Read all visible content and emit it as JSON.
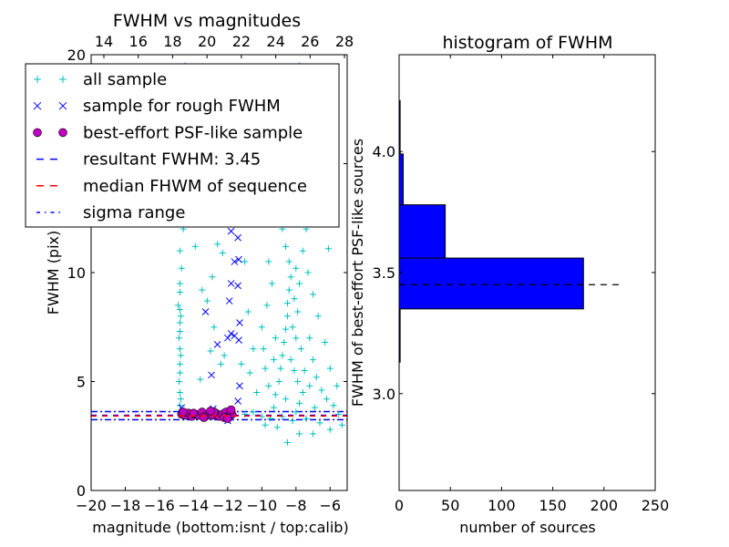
{
  "chart_data": [
    {
      "type": "scatter",
      "title": "FWHM vs magnitudes",
      "xlabel": "magnitude (bottom:isnt / top:calib)",
      "ylabel": "FWHM (pix)",
      "xlim": [
        -20,
        -5
      ],
      "ylim": [
        0,
        20
      ],
      "xticks": [
        -20,
        -18,
        -16,
        -14,
        -12,
        -10,
        -8,
        -6
      ],
      "xtick_labels": [
        "−20",
        "−18",
        "−16",
        "−14",
        "−12",
        "−10",
        "−8",
        "−6"
      ],
      "yticks": [
        0,
        5,
        10,
        15,
        20
      ],
      "ytick_labels": [
        "0",
        "5",
        "10",
        "15",
        "20"
      ],
      "top_xticks": [
        14,
        16,
        18,
        20,
        22,
        24,
        26,
        28
      ],
      "top_xtick_labels": [
        "14",
        "16",
        "18",
        "20",
        "22",
        "24",
        "26",
        "28"
      ],
      "legend_position": "upper-left",
      "series": [
        {
          "name": "all sample",
          "marker": "+",
          "color": "#00bfbf",
          "points": [
            [
              -14.8,
              3.6
            ],
            [
              -14.8,
              3.9
            ],
            [
              -14.75,
              4.2
            ],
            [
              -14.8,
              4.5
            ],
            [
              -14.85,
              5.0
            ],
            [
              -14.8,
              5.4
            ],
            [
              -14.8,
              5.8
            ],
            [
              -14.75,
              6.2
            ],
            [
              -14.8,
              6.5
            ],
            [
              -14.85,
              7.0
            ],
            [
              -14.8,
              7.3
            ],
            [
              -14.8,
              7.7
            ],
            [
              -14.75,
              8.0
            ],
            [
              -14.8,
              8.3
            ],
            [
              -14.9,
              8.5
            ],
            [
              -14.8,
              9.1
            ],
            [
              -14.8,
              9.5
            ],
            [
              -14.7,
              10.2
            ],
            [
              -14.8,
              11.0
            ],
            [
              -14.6,
              12.0
            ],
            [
              -14.7,
              13.5
            ],
            [
              -14.5,
              15.0
            ],
            [
              -14.6,
              17.0
            ],
            [
              -14.4,
              18.5
            ],
            [
              -14.5,
              19.5
            ],
            [
              -13.5,
              9.2
            ],
            [
              -13.2,
              8.7
            ],
            [
              -12.8,
              7.5
            ],
            [
              -13.0,
              6.4
            ],
            [
              -12.2,
              6.2
            ],
            [
              -12.4,
              5.8
            ],
            [
              -13.6,
              5.1
            ],
            [
              -12.9,
              9.8
            ],
            [
              -12.3,
              10.9
            ],
            [
              -13.9,
              11.2
            ],
            [
              -12.0,
              12.5
            ],
            [
              -11.0,
              10.5
            ],
            [
              -10.8,
              8.2
            ],
            [
              -10.5,
              6.5
            ],
            [
              -10.7,
              5.4
            ],
            [
              -11.2,
              5.8
            ],
            [
              -10.3,
              4.5
            ],
            [
              -12.5,
              14.0
            ],
            [
              -13.0,
              16.5
            ],
            [
              -11.5,
              18.0
            ],
            [
              -10.5,
              15.0
            ],
            [
              -13.8,
              12.8
            ],
            [
              -12.6,
              11.3
            ],
            [
              -11.8,
              3.7
            ],
            [
              -11.0,
              3.5
            ],
            [
              -10.5,
              3.6
            ],
            [
              -10.0,
              3.4
            ],
            [
              -9.8,
              3.0
            ],
            [
              -9.5,
              3.3
            ],
            [
              -9.3,
              3.8
            ],
            [
              -9.2,
              4.4
            ],
            [
              -9.0,
              5.0
            ],
            [
              -8.9,
              5.6
            ],
            [
              -8.8,
              6.2
            ],
            [
              -8.7,
              6.8
            ],
            [
              -8.6,
              7.4
            ],
            [
              -8.5,
              8.0
            ],
            [
              -8.5,
              8.6
            ],
            [
              -8.4,
              9.2
            ],
            [
              -8.3,
              9.8
            ],
            [
              -8.4,
              10.5
            ],
            [
              -8.6,
              11.2
            ],
            [
              -8.8,
              12.0
            ],
            [
              -9.0,
              12.8
            ],
            [
              -8.7,
              13.6
            ],
            [
              -9.2,
              14.5
            ],
            [
              -8.5,
              15.5
            ],
            [
              -9.5,
              16.5
            ],
            [
              -8.0,
              17.5
            ],
            [
              -9.0,
              18.5
            ],
            [
              -7.8,
              19.5
            ],
            [
              -8.2,
              16.0
            ],
            [
              -7.5,
              14.0
            ],
            [
              -8.2,
              3.2
            ],
            [
              -8.0,
              3.6
            ],
            [
              -7.8,
              4.0
            ],
            [
              -7.6,
              4.5
            ],
            [
              -7.9,
              5.0
            ],
            [
              -8.1,
              5.5
            ],
            [
              -8.3,
              6.0
            ],
            [
              -7.7,
              6.5
            ],
            [
              -8.0,
              7.0
            ],
            [
              -8.2,
              7.5
            ],
            [
              -7.9,
              8.2
            ],
            [
              -8.1,
              8.8
            ],
            [
              -7.8,
              9.5
            ],
            [
              -8.0,
              10.2
            ],
            [
              -7.6,
              11.0
            ],
            [
              -7.4,
              12.0
            ],
            [
              -7.2,
              7.0
            ],
            [
              -7.0,
              6.0
            ],
            [
              -6.8,
              5.2
            ],
            [
              -6.5,
              4.6
            ],
            [
              -6.2,
              4.2
            ],
            [
              -5.8,
              3.9
            ],
            [
              -5.5,
              3.5
            ],
            [
              -5.3,
              3.0
            ],
            [
              -6.0,
              2.8
            ],
            [
              -6.6,
              3.1
            ],
            [
              -7.0,
              2.6
            ],
            [
              -7.4,
              3.3
            ],
            [
              -7.2,
              4.8
            ],
            [
              -6.9,
              3.8
            ],
            [
              -7.5,
              5.5
            ],
            [
              -8.6,
              4.2
            ],
            [
              -8.8,
              3.4
            ],
            [
              -9.1,
              2.9
            ],
            [
              -8.5,
              2.2
            ],
            [
              -7.8,
              2.6
            ],
            [
              -9.6,
              4.8
            ],
            [
              -9.8,
              5.6
            ],
            [
              -9.9,
              6.5
            ],
            [
              -10.0,
              7.5
            ],
            [
              -9.7,
              8.5
            ],
            [
              -9.4,
              9.5
            ],
            [
              -9.6,
              10.5
            ],
            [
              -9.2,
              7.0
            ],
            [
              -9.3,
              6.0
            ],
            [
              -6.3,
              6.8
            ],
            [
              -6.0,
              5.6
            ],
            [
              -5.6,
              4.8
            ],
            [
              -6.1,
              11.1
            ],
            [
              -7.0,
              9.0
            ],
            [
              -6.7,
              8.0
            ],
            [
              -7.3,
              10.0
            ]
          ]
        },
        {
          "name": "sample for rough FWHM",
          "marker": "x",
          "color": "#0000ff",
          "points": [
            [
              -11.8,
              13.0
            ],
            [
              -11.8,
              11.9
            ],
            [
              -11.4,
              11.6
            ],
            [
              -11.6,
              10.5
            ],
            [
              -11.35,
              10.6
            ],
            [
              -11.8,
              9.5
            ],
            [
              -11.4,
              9.4
            ],
            [
              -11.9,
              8.7
            ],
            [
              -13.3,
              8.2
            ],
            [
              -11.3,
              7.7
            ],
            [
              -11.8,
              7.2
            ],
            [
              -11.6,
              7.1
            ],
            [
              -11.35,
              6.9
            ],
            [
              -12.6,
              6.7
            ],
            [
              -12.0,
              7.0
            ],
            [
              -12.95,
              5.3
            ],
            [
              -11.3,
              4.8
            ],
            [
              -11.4,
              4.1
            ],
            [
              -14.7,
              3.8
            ],
            [
              -12.85,
              3.75
            ],
            [
              -12.0,
              3.2
            ],
            [
              -13.9,
              3.5
            ],
            [
              -12.5,
              3.55
            ],
            [
              -11.9,
              3.4
            ]
          ]
        },
        {
          "name": "best-effort PSF-like sample",
          "marker": "o",
          "color": "#bf00bf",
          "points": [
            [
              -14.7,
              3.5
            ],
            [
              -14.5,
              3.45
            ],
            [
              -14.3,
              3.55
            ],
            [
              -14.1,
              3.4
            ],
            [
              -13.9,
              3.5
            ],
            [
              -13.7,
              3.45
            ],
            [
              -13.5,
              3.6
            ],
            [
              -13.3,
              3.4
            ],
            [
              -13.1,
              3.5
            ],
            [
              -12.9,
              3.45
            ],
            [
              -12.7,
              3.55
            ],
            [
              -12.5,
              3.4
            ],
            [
              -12.3,
              3.5
            ],
            [
              -12.1,
              3.6
            ],
            [
              -11.9,
              3.45
            ],
            [
              -11.75,
              3.5
            ],
            [
              -14.6,
              3.6
            ],
            [
              -14.0,
              3.55
            ],
            [
              -13.4,
              3.35
            ],
            [
              -12.8,
              3.6
            ],
            [
              -12.2,
              3.35
            ],
            [
              -11.8,
              3.7
            ],
            [
              -13.0,
              3.65
            ],
            [
              -12.0,
              3.3
            ]
          ]
        }
      ],
      "lines": [
        {
          "name": "resultant FWHM: 3.45",
          "y": 3.45,
          "style": "dashed",
          "color": "#0000ff"
        },
        {
          "name": "median FHWM of sequence",
          "y": 3.42,
          "style": "dashed",
          "color": "#ff0000"
        },
        {
          "name": "sigma range",
          "y": [
            3.25,
            3.62
          ],
          "style": "dashdot",
          "color": "#0000ff"
        }
      ]
    },
    {
      "type": "bar",
      "orientation": "horizontal",
      "title": "histogram of FWHM",
      "xlabel": "number of sources",
      "ylabel": "FWHM of best-effort PSF-like sources",
      "xlim": [
        0,
        250
      ],
      "ylim": [
        2.6,
        4.4
      ],
      "xticks": [
        0,
        50,
        100,
        150,
        200,
        250
      ],
      "xtick_labels": [
        "0",
        "50",
        "100",
        "150",
        "200",
        "250"
      ],
      "yticks": [
        3.0,
        3.5,
        4.0
      ],
      "ytick_labels": [
        "3.0",
        "3.5",
        "4.0"
      ],
      "bin_edges": [
        3.13,
        3.35,
        3.56,
        3.78,
        3.99,
        4.21
      ],
      "counts": [
        1,
        180,
        45,
        4,
        1
      ],
      "bar_color": "#0000ff",
      "reference_line": {
        "y": 3.45,
        "x_extent": [
          0,
          215
        ],
        "style": "dashed",
        "color": "#000000"
      }
    }
  ]
}
